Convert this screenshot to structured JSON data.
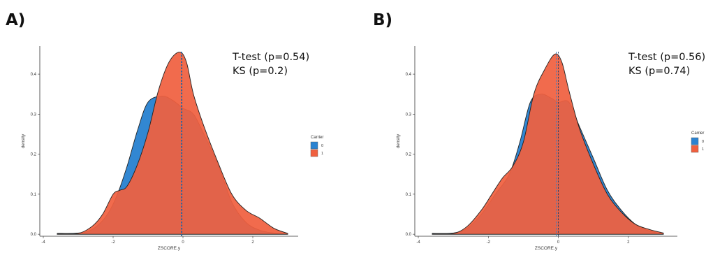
{
  "chart_data": [
    {
      "panel_label": "A)",
      "type": "area",
      "title": "",
      "xlabel": "ZSCORE.y",
      "ylabel": "density",
      "xlim": [
        -4.1,
        3.3
      ],
      "ylim": [
        -0.005,
        0.47
      ],
      "x_ticks": [
        -4,
        -2,
        0,
        2
      ],
      "y_ticks": [
        0.0,
        0.1,
        0.2,
        0.3,
        0.4
      ],
      "y_tick_labels": [
        "0.0",
        "0.1",
        "0.2",
        "0.3",
        "0.4"
      ],
      "annotations": [
        "T-test (p=0.54)",
        "KS (p=0.2)"
      ],
      "legend": {
        "title": "Carrier",
        "position": "right"
      },
      "mean_lines": [
        -0.05,
        -0.03
      ],
      "series": [
        {
          "name": "0",
          "color": "#2b83d1",
          "points": [
            [
              -3.6,
              0.002
            ],
            [
              -3.0,
              0.003
            ],
            [
              -2.6,
              0.012
            ],
            [
              -2.2,
              0.045
            ],
            [
              -1.9,
              0.095
            ],
            [
              -1.6,
              0.17
            ],
            [
              -1.3,
              0.26
            ],
            [
              -1.0,
              0.33
            ],
            [
              -0.6,
              0.345
            ],
            [
              -0.3,
              0.335
            ],
            [
              0.0,
              0.315
            ],
            [
              0.3,
              0.3
            ],
            [
              0.6,
              0.25
            ],
            [
              1.0,
              0.175
            ],
            [
              1.4,
              0.08
            ],
            [
              1.8,
              0.03
            ],
            [
              2.2,
              0.01
            ],
            [
              2.6,
              0.003
            ],
            [
              3.0,
              0.001
            ]
          ]
        },
        {
          "name": "1",
          "color": "#f0603f",
          "points": [
            [
              -3.6,
              0.001
            ],
            [
              -3.0,
              0.002
            ],
            [
              -2.6,
              0.02
            ],
            [
              -2.3,
              0.05
            ],
            [
              -2.0,
              0.1
            ],
            [
              -1.8,
              0.11
            ],
            [
              -1.6,
              0.12
            ],
            [
              -1.3,
              0.175
            ],
            [
              -1.0,
              0.255
            ],
            [
              -0.7,
              0.36
            ],
            [
              -0.4,
              0.43
            ],
            [
              -0.1,
              0.455
            ],
            [
              0.1,
              0.43
            ],
            [
              0.3,
              0.35
            ],
            [
              0.6,
              0.27
            ],
            [
              1.0,
              0.18
            ],
            [
              1.4,
              0.1
            ],
            [
              1.8,
              0.06
            ],
            [
              2.2,
              0.04
            ],
            [
              2.6,
              0.015
            ],
            [
              3.0,
              0.002
            ]
          ]
        }
      ]
    },
    {
      "panel_label": "B)",
      "type": "area",
      "title": "",
      "xlabel": "ZSCORE.y",
      "ylabel": "density",
      "xlim": [
        -4.1,
        3.4
      ],
      "ylim": [
        -0.005,
        0.47
      ],
      "x_ticks": [
        -4,
        -2,
        0,
        2
      ],
      "y_ticks": [
        0.0,
        0.1,
        0.2,
        0.3,
        0.4
      ],
      "y_tick_labels": [
        "0.0",
        "0.1",
        "0.2",
        "0.3",
        "0.4"
      ],
      "annotations": [
        "T-test (p=0.56)",
        "KS (p=0.74)"
      ],
      "legend": {
        "title": "Carrier",
        "position": "right"
      },
      "mean_lines": [
        -0.06,
        0.0
      ],
      "series": [
        {
          "name": "0",
          "color": "#2b83d1",
          "points": [
            [
              -3.6,
              0.002
            ],
            [
              -3.0,
              0.003
            ],
            [
              -2.6,
              0.015
            ],
            [
              -2.2,
              0.05
            ],
            [
              -1.8,
              0.1
            ],
            [
              -1.4,
              0.15
            ],
            [
              -1.1,
              0.23
            ],
            [
              -0.8,
              0.33
            ],
            [
              -0.5,
              0.35
            ],
            [
              -0.2,
              0.34
            ],
            [
              0.0,
              0.33
            ],
            [
              0.3,
              0.33
            ],
            [
              0.6,
              0.27
            ],
            [
              1.0,
              0.19
            ],
            [
              1.4,
              0.11
            ],
            [
              1.8,
              0.06
            ],
            [
              2.2,
              0.025
            ],
            [
              2.6,
              0.008
            ],
            [
              3.0,
              0.001
            ]
          ]
        },
        {
          "name": "1",
          "color": "#f0603f",
          "points": [
            [
              -3.6,
              0.001
            ],
            [
              -3.0,
              0.002
            ],
            [
              -2.6,
              0.02
            ],
            [
              -2.2,
              0.06
            ],
            [
              -1.9,
              0.1
            ],
            [
              -1.6,
              0.14
            ],
            [
              -1.3,
              0.17
            ],
            [
              -1.0,
              0.23
            ],
            [
              -0.7,
              0.35
            ],
            [
              -0.4,
              0.41
            ],
            [
              -0.1,
              0.45
            ],
            [
              0.1,
              0.43
            ],
            [
              0.3,
              0.36
            ],
            [
              0.6,
              0.265
            ],
            [
              1.0,
              0.175
            ],
            [
              1.4,
              0.1
            ],
            [
              1.8,
              0.055
            ],
            [
              2.2,
              0.025
            ],
            [
              2.6,
              0.012
            ],
            [
              3.0,
              0.003
            ]
          ]
        }
      ]
    }
  ]
}
